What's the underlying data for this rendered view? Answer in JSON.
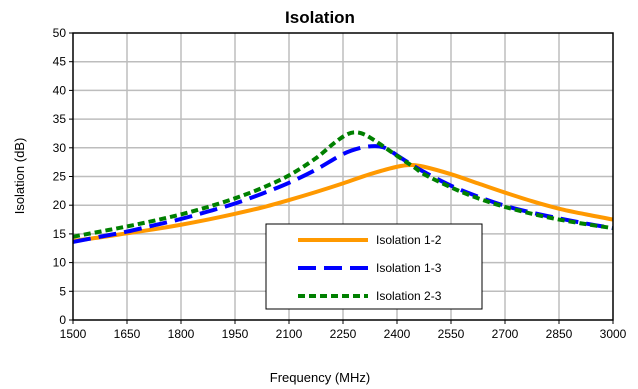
{
  "chart_data": {
    "type": "line",
    "title": "Isolation",
    "xlabel": "Frequency (MHz)",
    "ylabel": "Isolation (dB)",
    "xlim": [
      1500,
      3000
    ],
    "ylim": [
      0,
      50
    ],
    "xticks": [
      1500,
      1650,
      1800,
      1950,
      2100,
      2250,
      2400,
      2550,
      2700,
      2850,
      3000
    ],
    "yticks": [
      0,
      5,
      10,
      15,
      20,
      25,
      30,
      35,
      40,
      45,
      50
    ],
    "grid": true,
    "legend_position": "bottom-right",
    "series": [
      {
        "name": "Isolation 1-2",
        "color": "#FF9900",
        "dash": "solid",
        "x": [
          1500,
          1575,
          1650,
          1725,
          1800,
          1875,
          1950,
          2025,
          2100,
          2175,
          2250,
          2325,
          2400,
          2440,
          2475,
          2550,
          2625,
          2700,
          2775,
          2850,
          2925,
          3000
        ],
        "y": [
          13.8,
          14.4,
          15.1,
          15.8,
          16.6,
          17.5,
          18.5,
          19.6,
          20.9,
          22.3,
          23.8,
          25.4,
          26.7,
          27.0,
          26.7,
          25.4,
          23.8,
          22.2,
          20.7,
          19.4,
          18.4,
          17.5
        ]
      },
      {
        "name": "Isolation 1-3",
        "color": "#0000FF",
        "dash": "long-dash",
        "x": [
          1500,
          1575,
          1650,
          1725,
          1800,
          1875,
          1950,
          2025,
          2100,
          2175,
          2250,
          2300,
          2340,
          2370,
          2400,
          2440,
          2475,
          2550,
          2625,
          2700,
          2775,
          2850,
          2925,
          3000
        ],
        "y": [
          13.6,
          14.5,
          15.4,
          16.5,
          17.6,
          18.9,
          20.3,
          22.0,
          23.9,
          26.2,
          28.9,
          30.0,
          30.3,
          29.9,
          28.7,
          27.1,
          25.8,
          23.4,
          21.5,
          19.9,
          18.7,
          17.7,
          16.8,
          16.0
        ]
      },
      {
        "name": "Isolation 2-3",
        "color": "#008000",
        "dash": "short-dash",
        "x": [
          1500,
          1575,
          1650,
          1725,
          1800,
          1875,
          1950,
          2025,
          2100,
          2175,
          2225,
          2260,
          2285,
          2310,
          2340,
          2370,
          2400,
          2450,
          2475,
          2550,
          2625,
          2700,
          2775,
          2850,
          2925,
          3000
        ],
        "y": [
          14.5,
          15.4,
          16.3,
          17.3,
          18.4,
          19.7,
          21.2,
          23.0,
          25.2,
          28.2,
          30.8,
          32.3,
          32.7,
          32.3,
          31.2,
          29.9,
          28.6,
          26.5,
          25.4,
          23.1,
          21.2,
          19.7,
          18.5,
          17.5,
          16.7,
          16.0
        ]
      }
    ]
  }
}
